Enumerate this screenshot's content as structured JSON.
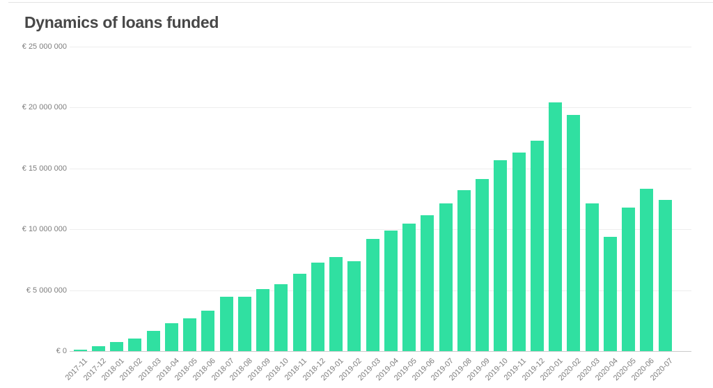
{
  "page": {
    "background": "#ffffff",
    "top_divider_color": "#e3e3e3"
  },
  "chart_data": {
    "type": "bar",
    "title": "Dynamics of loans funded",
    "xlabel": "",
    "ylabel": "",
    "currency": "EUR",
    "ylim": [
      0,
      25000000
    ],
    "grid": true,
    "legend_position": "none",
    "bar_color": "#30e0a1",
    "title_color": "#474747",
    "grid_color": "#ededed",
    "baseline_color": "#cbcbcb",
    "axis_label_color": "#7d7d7d",
    "y_ticks": [
      {
        "label": "€ 25 000 000",
        "value": 25000000
      },
      {
        "label": "€ 20 000 000",
        "value": 20000000
      },
      {
        "label": "€ 15 000 000",
        "value": 15000000
      },
      {
        "label": "€ 10 000 000",
        "value": 10000000
      },
      {
        "label": "€ 5 000 000",
        "value": 5000000
      },
      {
        "label": "€ 0",
        "value": 0
      }
    ],
    "categories": [
      "2017-11",
      "2017-12",
      "2018-01",
      "2018-02",
      "2018-03",
      "2018-04",
      "2018-05",
      "2018-06",
      "2018-07",
      "2018-08",
      "2018-09",
      "2018-10",
      "2018-11",
      "2018-12",
      "2019-01",
      "2019-02",
      "2019-03",
      "2019-04",
      "2019-05",
      "2019-06",
      "2019-07",
      "2019-08",
      "2019-09",
      "2019-10",
      "2019-11",
      "2019-12",
      "2020-01",
      "2020-02",
      "2020-03",
      "2020-04",
      "2020-05",
      "2020-06",
      "2020-07"
    ],
    "values": [
      120000,
      400000,
      750000,
      1050000,
      1650000,
      2300000,
      2700000,
      3300000,
      4450000,
      4450000,
      5100000,
      5500000,
      6350000,
      7250000,
      7700000,
      7400000,
      9200000,
      9900000,
      10450000,
      11150000,
      12100000,
      13200000,
      14150000,
      15650000,
      16300000,
      17250000,
      20400000,
      19400000,
      12100000,
      9400000,
      11800000,
      13350000,
      12400000
    ]
  }
}
